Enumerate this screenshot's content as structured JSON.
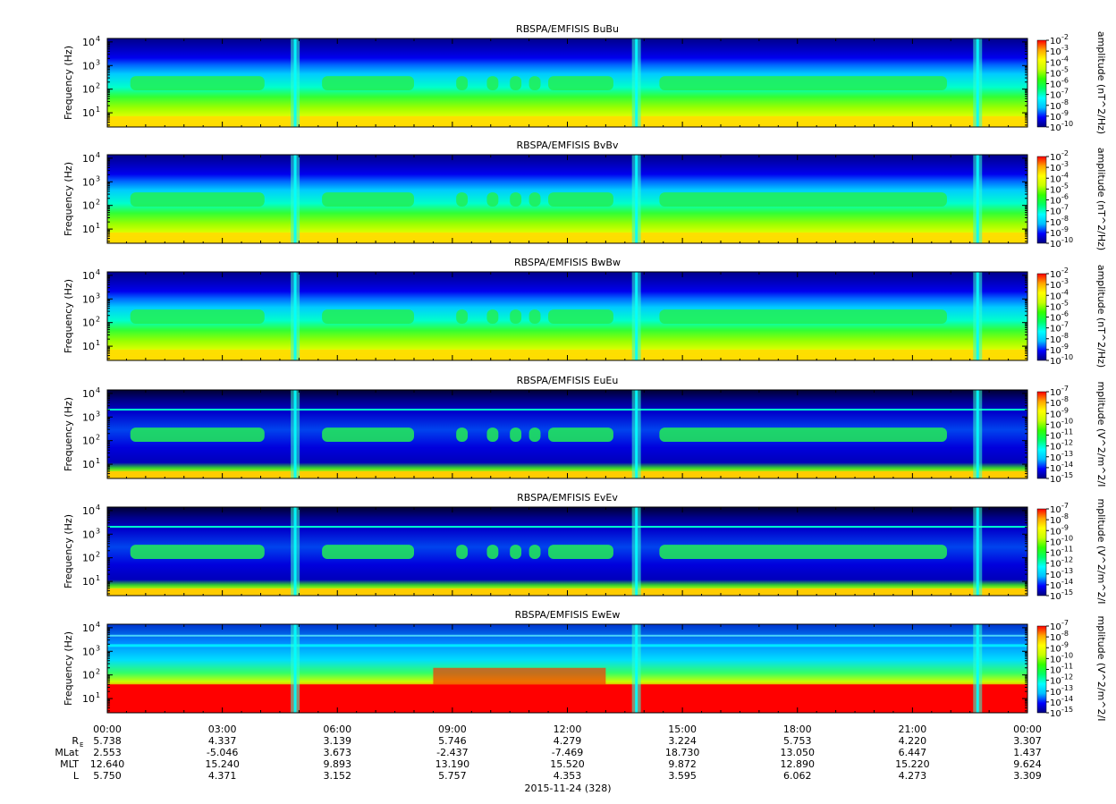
{
  "chart_data": {
    "type": "heatmap",
    "time_axis": {
      "tick_labels": [
        "00:00",
        "03:00",
        "06:00",
        "09:00",
        "12:00",
        "15:00",
        "18:00",
        "21:00",
        "00:00"
      ],
      "date_label": "2015-11-24 (328)"
    },
    "ephemeris": {
      "rows": [
        {
          "label_main": "R",
          "label_sub": "E",
          "values": [
            "5.738",
            "4.337",
            "3.139",
            "5.746",
            "4.279",
            "3.224",
            "5.753",
            "4.220",
            "3.307"
          ]
        },
        {
          "label_main": "MLat",
          "label_sub": "",
          "values": [
            "2.553",
            "-5.046",
            "3.673",
            "-2.437",
            "-7.469",
            "18.730",
            "13.050",
            "6.447",
            "1.437"
          ]
        },
        {
          "label_main": "MLT",
          "label_sub": "",
          "values": [
            "12.640",
            "15.240",
            "9.893",
            "13.190",
            "15.520",
            "9.872",
            "12.890",
            "15.220",
            "9.624"
          ]
        },
        {
          "label_main": "L",
          "label_sub": "",
          "values": [
            "5.750",
            "4.371",
            "3.152",
            "5.757",
            "4.353",
            "3.595",
            "6.062",
            "4.273",
            "3.309"
          ]
        }
      ]
    },
    "panels": [
      {
        "title": "RBSPA/EMFISIS  BuBu",
        "ylabel": "Frequency (Hz)",
        "ytick_exponents": [
          "1",
          "2",
          "3",
          "4"
        ],
        "colorbar_label": "amplitude (nT^2/Hz)",
        "colorbar_exponents": [
          "-2",
          "-3",
          "-4",
          "-5",
          "-6",
          "-7",
          "-8",
          "-9",
          "-10"
        ],
        "kind": "b"
      },
      {
        "title": "RBSPA/EMFISIS  BvBv",
        "ylabel": "Frequency (Hz)",
        "ytick_exponents": [
          "1",
          "2",
          "3",
          "4"
        ],
        "colorbar_label": "amplitude (nT^2/Hz)",
        "colorbar_exponents": [
          "-2",
          "-3",
          "-4",
          "-5",
          "-6",
          "-7",
          "-8",
          "-9",
          "-10"
        ],
        "kind": "b"
      },
      {
        "title": "RBSPA/EMFISIS  BwBw",
        "ylabel": "Frequency (Hz)",
        "ytick_exponents": [
          "1",
          "2",
          "3",
          "4"
        ],
        "colorbar_label": "amplitude (nT^2/Hz)",
        "colorbar_exponents": [
          "-2",
          "-3",
          "-4",
          "-5",
          "-6",
          "-7",
          "-8",
          "-9",
          "-10"
        ],
        "kind": "b"
      },
      {
        "title": "RBSPA/EMFISIS  EuEu",
        "ylabel": "Frequency (Hz)",
        "ytick_exponents": [
          "1",
          "2",
          "3",
          "4"
        ],
        "colorbar_label": "mplitude (V^2/m^2/I",
        "colorbar_exponents": [
          "-7",
          "-8",
          "-9",
          "-10",
          "-11",
          "-12",
          "-13",
          "-14",
          "-15"
        ],
        "kind": "e"
      },
      {
        "title": "RBSPA/EMFISIS  EvEv",
        "ylabel": "Frequency (Hz)",
        "ytick_exponents": [
          "1",
          "2",
          "3",
          "4"
        ],
        "colorbar_label": "mplitude (V^2/m^2/I",
        "colorbar_exponents": [
          "-7",
          "-8",
          "-9",
          "-10",
          "-11",
          "-12",
          "-13",
          "-14",
          "-15"
        ],
        "kind": "e"
      },
      {
        "title": "RBSPA/EMFISIS  EwEw",
        "ylabel": "Frequency (Hz)",
        "ytick_exponents": [
          "1",
          "2",
          "3",
          "4"
        ],
        "colorbar_label": "mplitude (V^2/m^2/I",
        "colorbar_exponents": [
          "-7",
          "-8",
          "-9",
          "-10",
          "-11",
          "-12",
          "-13",
          "-14",
          "-15"
        ],
        "kind": "ew"
      }
    ],
    "colormap": [
      "#00007f",
      "#0000ff",
      "#00bfff",
      "#00ffff",
      "#00ff66",
      "#33ff00",
      "#c8ff00",
      "#ffff00",
      "#ffa500",
      "#ff0000"
    ]
  }
}
